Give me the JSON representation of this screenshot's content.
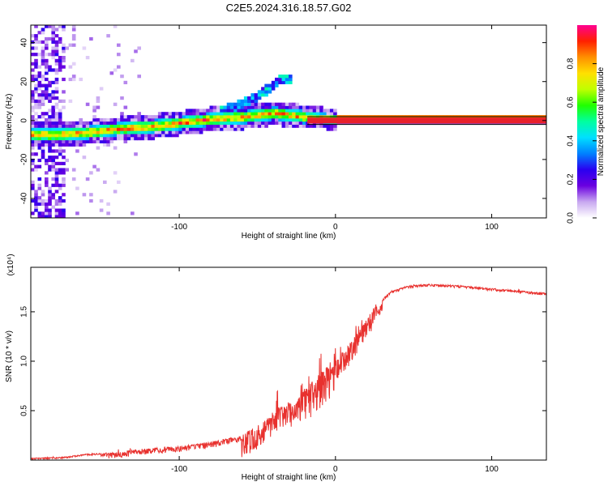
{
  "title": "C2E5.2024.316.18.57.G02",
  "chart_data": [
    {
      "type": "heatmap",
      "xlabel": "Height of straight line (km)",
      "ylabel": "Frequency (Hz)",
      "xlim": [
        -195,
        135
      ],
      "ylim": [
        -50,
        49
      ],
      "xticks": [
        -100,
        0,
        100
      ],
      "xtick_labels": [
        "-100",
        "0",
        "100"
      ],
      "yticks": [
        -40,
        -20,
        0,
        20,
        40
      ],
      "ytick_labels": [
        "-40",
        "-20",
        "0",
        "20",
        "40"
      ],
      "colorbar": {
        "label": "Normalized spectral amplitude",
        "range": [
          0,
          1
        ],
        "ticks": [
          "0.0",
          "0.2",
          "0.4",
          "0.6",
          "0.8"
        ],
        "tick_values": [
          0,
          0.2,
          0.4,
          0.6,
          0.8
        ],
        "colors": [
          "#ffffff",
          "#c8a8f0",
          "#6a00e0",
          "#2a00f0",
          "#0080ff",
          "#00e0ff",
          "#00ffa0",
          "#20ff00",
          "#c0ff00",
          "#ffe000",
          "#ff9000",
          "#ff2000",
          "#ff0090"
        ]
      },
      "ridge": [
        {
          "x": -180,
          "y": -8
        },
        {
          "x": -160,
          "y": -7
        },
        {
          "x": -140,
          "y": -5
        },
        {
          "x": -120,
          "y": -4
        },
        {
          "x": -100,
          "y": -2
        },
        {
          "x": -80,
          "y": 0
        },
        {
          "x": -60,
          "y": 1
        },
        {
          "x": -40,
          "y": 3
        },
        {
          "x": -20,
          "y": 1
        },
        {
          "x": 0,
          "y": 0
        },
        {
          "x": 135,
          "y": 0
        }
      ],
      "upper_branch": [
        {
          "x": -70,
          "y": 5
        },
        {
          "x": -50,
          "y": 12
        },
        {
          "x": -35,
          "y": 21
        }
      ],
      "grid": false
    },
    {
      "type": "line",
      "xlabel": "Height of straight line (km)",
      "ylabel": "SNR (10 * v/v)",
      "y_multiplier": "(x10⁴)",
      "xlim": [
        -195,
        135
      ],
      "ylim": [
        0,
        1.95
      ],
      "xticks": [
        -100,
        0,
        100
      ],
      "xtick_labels": [
        "-100",
        "0",
        "100"
      ],
      "yticks": [
        0.5,
        1.0,
        1.5
      ],
      "ytick_labels": [
        "0.5",
        "1.0",
        "1.5"
      ],
      "color": "#e8312e",
      "envelope": [
        {
          "x": -195,
          "y": 0.02
        },
        {
          "x": -175,
          "y": 0.03
        },
        {
          "x": -160,
          "y": 0.06
        },
        {
          "x": -140,
          "y": 0.08
        },
        {
          "x": -120,
          "y": 0.12
        },
        {
          "x": -100,
          "y": 0.14
        },
        {
          "x": -80,
          "y": 0.18
        },
        {
          "x": -60,
          "y": 0.25
        },
        {
          "x": -45,
          "y": 0.4
        },
        {
          "x": -35,
          "y": 0.55
        },
        {
          "x": -25,
          "y": 0.6
        },
        {
          "x": -15,
          "y": 0.8
        },
        {
          "x": -5,
          "y": 0.95
        },
        {
          "x": 5,
          "y": 1.1
        },
        {
          "x": 15,
          "y": 1.3
        },
        {
          "x": 25,
          "y": 1.55
        },
        {
          "x": 35,
          "y": 1.7
        },
        {
          "x": 45,
          "y": 1.76
        },
        {
          "x": 60,
          "y": 1.78
        },
        {
          "x": 75,
          "y": 1.77
        },
        {
          "x": 90,
          "y": 1.75
        },
        {
          "x": 105,
          "y": 1.73
        },
        {
          "x": 120,
          "y": 1.71
        },
        {
          "x": 135,
          "y": 1.69
        }
      ],
      "grid": false
    }
  ]
}
